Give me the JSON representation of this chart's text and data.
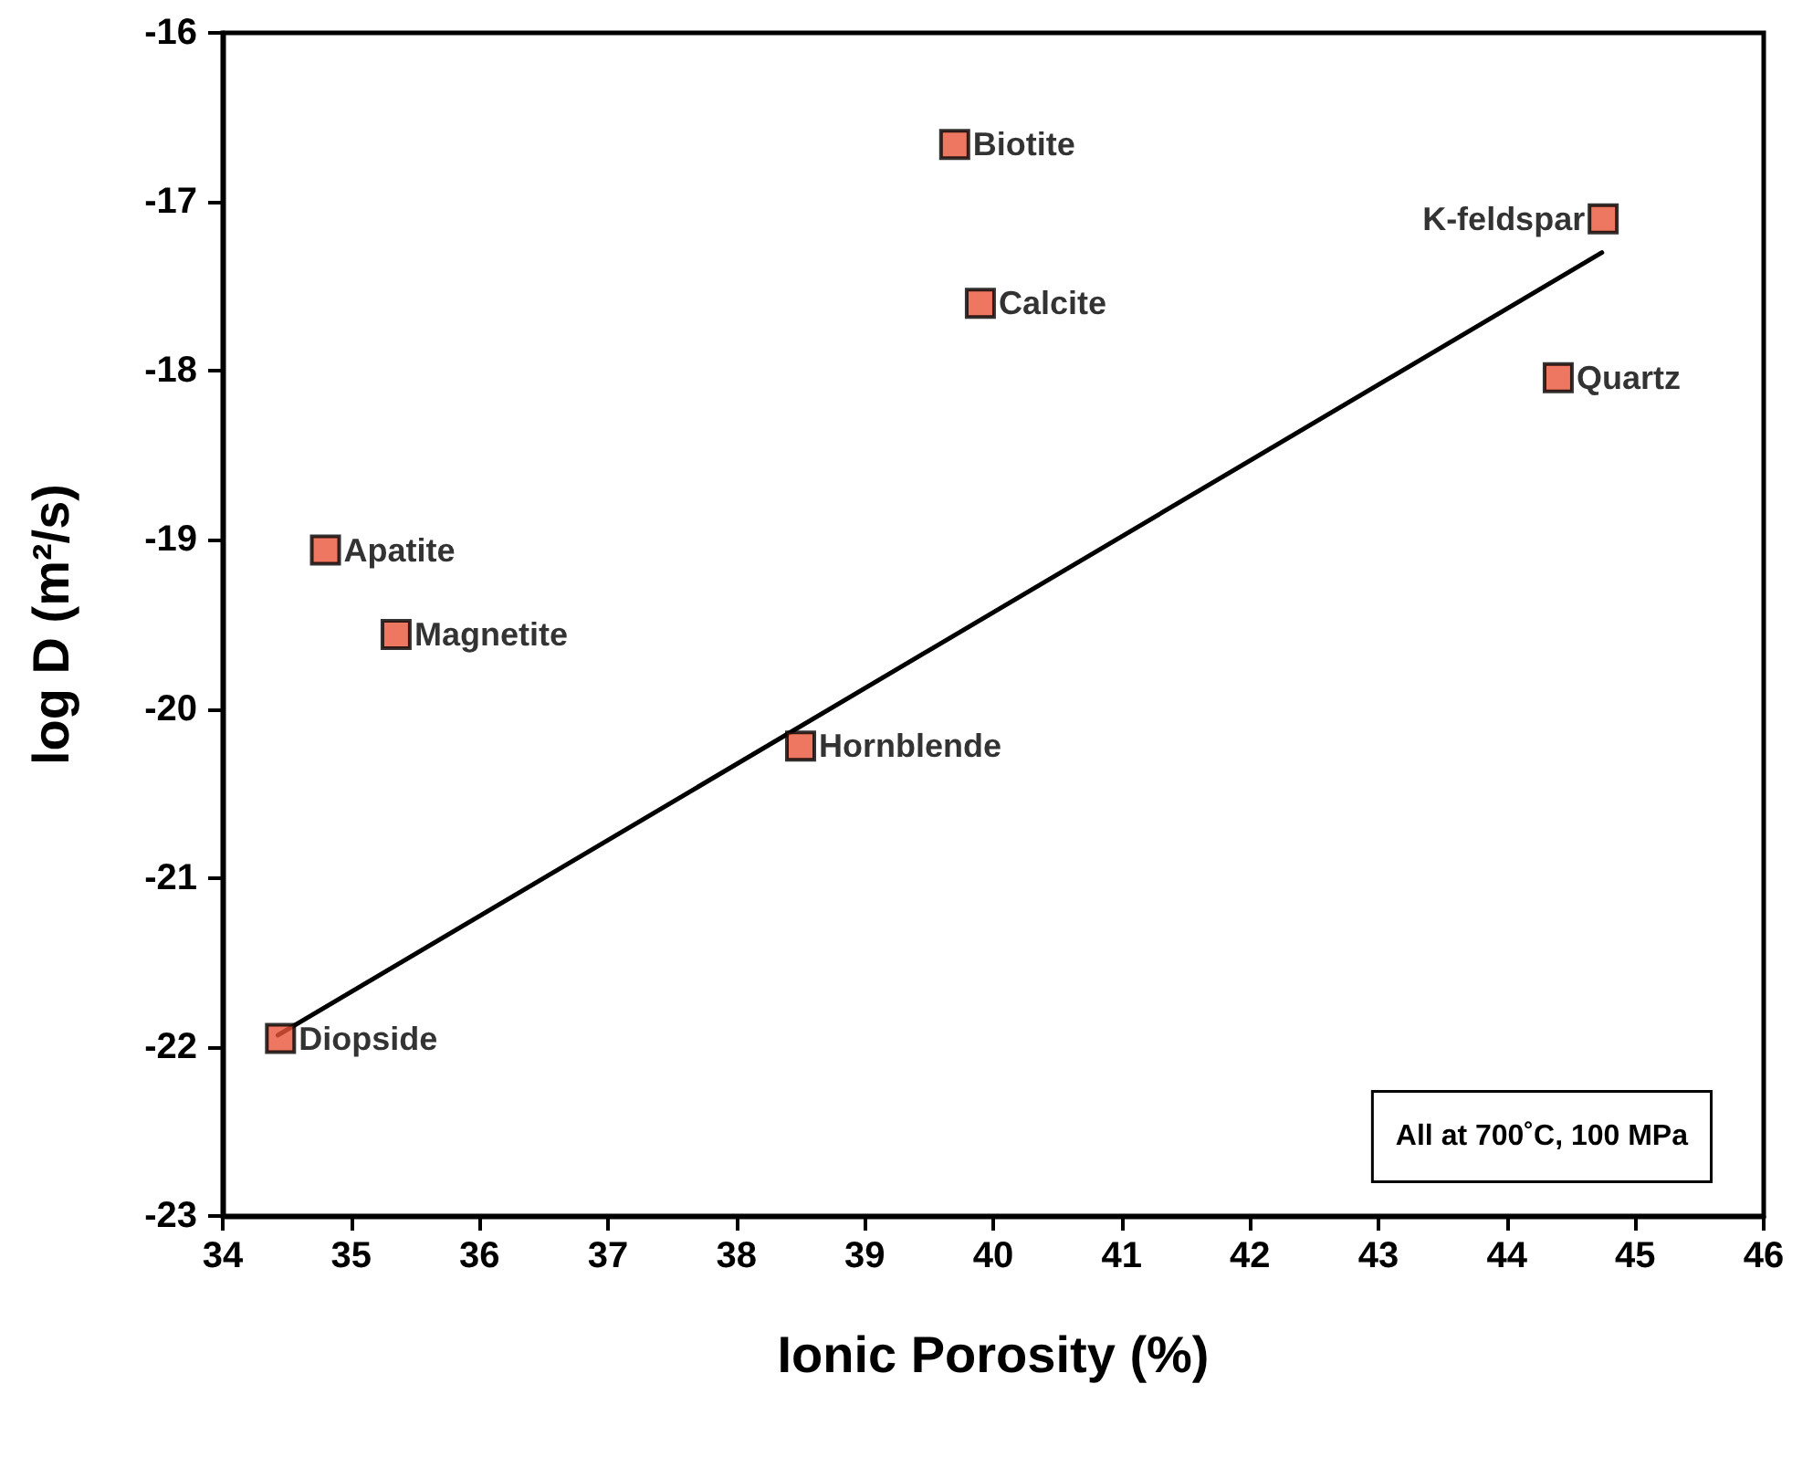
{
  "chart_data": {
    "type": "scatter",
    "xlabel": "Ionic Porosity (%)",
    "ylabel": "log D (m²/s)",
    "xlim": [
      34,
      46
    ],
    "xticks": [
      34,
      35,
      36,
      37,
      38,
      39,
      40,
      41,
      42,
      43,
      44,
      45,
      46
    ],
    "ylim": [
      -23,
      -16
    ],
    "yticks": [
      -23,
      -22,
      -21,
      -20,
      -19,
      -18,
      -17,
      -16
    ],
    "grid": false,
    "marker": "square",
    "series": [
      {
        "color": "#e8553a",
        "x": [
          39.7,
          39.9,
          44.75,
          44.4,
          34.8,
          35.35,
          38.5,
          34.45
        ],
        "values": [
          -16.66,
          -17.6,
          -17.1,
          -18.04,
          -19.06,
          -19.56,
          -20.22,
          -21.95
        ]
      },
      {
        "type": "line",
        "color": "#000000",
        "x": [
          34.43,
          44.74
        ],
        "values": [
          -21.93,
          -17.3
        ],
        "line_style": "solid",
        "marker": "none"
      }
    ],
    "annotations": [
      {
        "text": "Biotite",
        "x": 39.7,
        "y": -16.66
      },
      {
        "text": "Calcite",
        "x": 39.9,
        "y": -17.6
      },
      {
        "text": "K-feldspar",
        "x": 44.75,
        "y": -17.1
      },
      {
        "text": "Quartz",
        "x": 44.4,
        "y": -18.04
      },
      {
        "text": "Apatite",
        "x": 34.8,
        "y": -19.06
      },
      {
        "text": "Magnetite",
        "x": 35.35,
        "y": -19.56
      },
      {
        "text": "Hornblende",
        "x": 38.5,
        "y": -20.22
      },
      {
        "text": "Diopside",
        "x": 34.45,
        "y": -21.95
      },
      "All at 700˚C, 100 MPa"
    ]
  }
}
